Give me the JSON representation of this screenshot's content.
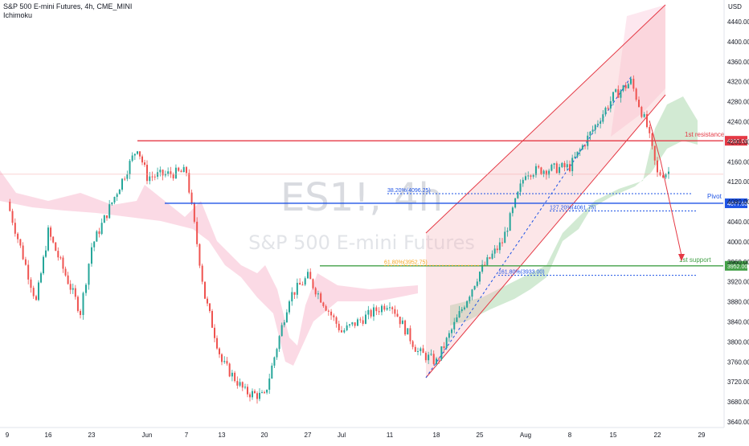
{
  "header": {
    "symbol_line": "S&P 500 E-mini Futures, 4h, CME_MINI",
    "indicator": "Ichimoku"
  },
  "watermark": {
    "ticker": "ES1!, 4h",
    "name": "S&P 500 E-mini Futures"
  },
  "colors": {
    "up": "#26a69a",
    "down": "#ef5350",
    "resistance": "#e53945",
    "pivot": "#1e53e5",
    "support": "#43a047",
    "channel": "#f7b6bc",
    "cloud_bull": "#a5d6a7",
    "cloud_bear": "#f8bbd0"
  },
  "chart_data": {
    "type": "candlestick",
    "timeframe": "4h",
    "y_unit": "USD",
    "ylim": [
      3625,
      4470
    ],
    "y_ticks": [
      3640,
      3680,
      3720,
      3760,
      3800,
      3840,
      3880,
      3920,
      3960,
      4000,
      4040,
      4080,
      4120,
      4160,
      4200,
      4240,
      4280,
      4320,
      4360,
      4400,
      4440
    ],
    "x_ticks": [
      "9",
      "16",
      "23",
      "Jun",
      "7",
      "13",
      "20",
      "27",
      "Jul",
      "11",
      "18",
      "25",
      "Aug",
      "8",
      "15",
      "22",
      "29"
    ],
    "price_path": [
      {
        "x": "9",
        "close": 4080
      },
      {
        "x": "12",
        "close": 3880
      },
      {
        "x": "16",
        "close": 4020
      },
      {
        "x": "20",
        "close": 3860
      },
      {
        "x": "23",
        "close": 3990
      },
      {
        "x": "27",
        "close": 4190
      },
      {
        "x": "Jun",
        "close": 4130
      },
      {
        "x": "7",
        "close": 4140
      },
      {
        "x": "10",
        "close": 3890
      },
      {
        "x": "13",
        "close": 3760
      },
      {
        "x": "17",
        "close": 3700
      },
      {
        "x": "20",
        "close": 3690
      },
      {
        "x": "24",
        "close": 3890
      },
      {
        "x": "27",
        "close": 3930
      },
      {
        "x": "Jul",
        "close": 3820
      },
      {
        "x": "7",
        "close": 3850
      },
      {
        "x": "11",
        "close": 3880
      },
      {
        "x": "15",
        "close": 3780
      },
      {
        "x": "18",
        "close": 3760
      },
      {
        "x": "25",
        "close": 3940
      },
      {
        "x": "28",
        "close": 4000
      },
      {
        "x": "Aug",
        "close": 4140
      },
      {
        "x": "8",
        "close": 4150
      },
      {
        "x": "15",
        "close": 4290
      },
      {
        "x": "17",
        "close": 4320
      },
      {
        "x": "20",
        "close": 4230
      },
      {
        "x": "22",
        "close": 4135
      },
      {
        "x": "23",
        "close": 4140
      }
    ],
    "levels": [
      {
        "label": "1st resistance",
        "price": 4202.0,
        "tag": "4202.00"
      },
      {
        "label": "Pivot",
        "price": 4077.0,
        "tag": "4077.00"
      },
      {
        "label": "1st support",
        "price": 3952.0,
        "tag": "3952.00"
      }
    ],
    "fibonacci": [
      {
        "label": "38.20%(4096.25)",
        "price": 4096.25
      },
      {
        "label": "127.20%(4061.75)",
        "price": 4061.75
      },
      {
        "label": "61.80%(3952.75)",
        "price": 3952.75
      },
      {
        "label": "161.80%(3933.00)",
        "price": 3933.0
      }
    ],
    "grid": false,
    "legend": "none"
  }
}
